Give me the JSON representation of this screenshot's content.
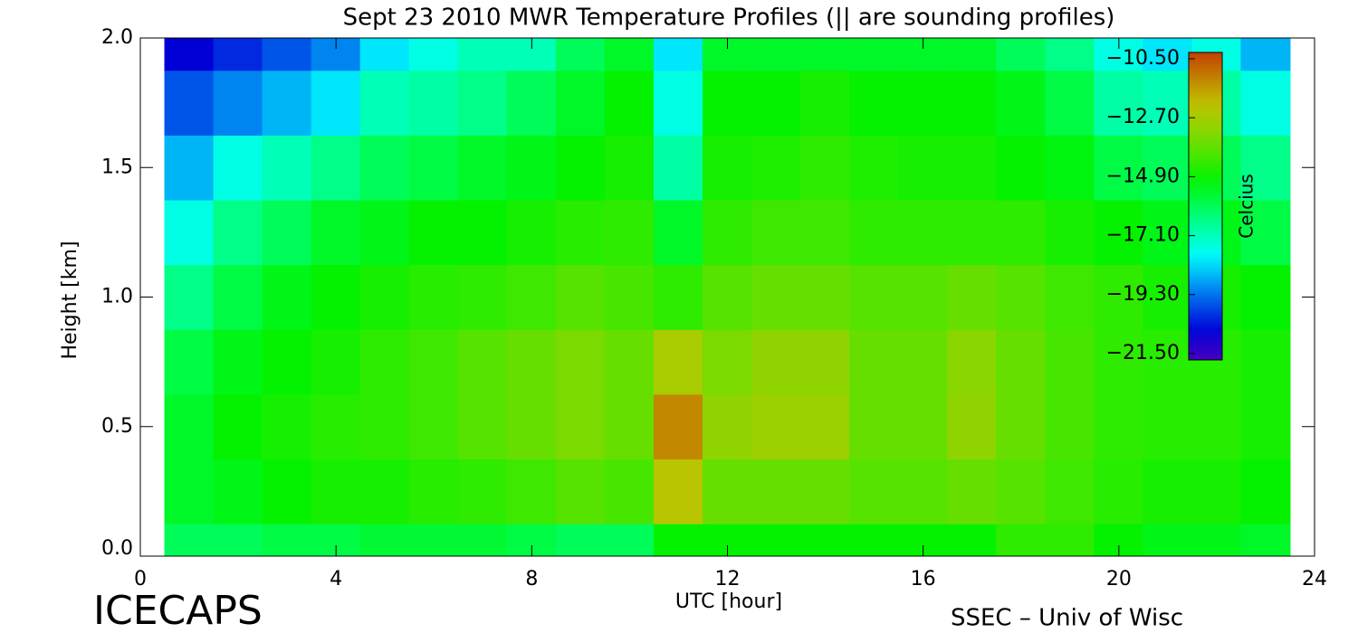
{
  "chart_data": {
    "type": "heatmap",
    "title": "Sept 23 2010 MWR Temperature Profiles (|| are sounding profiles)",
    "xlabel": "UTC [hour]",
    "ylabel": "Height [km]",
    "colorbar_label": "Celcius",
    "footer_left": "ICECAPS",
    "footer_right": "SSEC – Univ of Wisc",
    "xlim": [
      0,
      24
    ],
    "xticks": [
      0,
      4,
      8,
      12,
      16,
      20,
      24
    ],
    "ylim": [
      0,
      2
    ],
    "yticks": [
      {
        "value": 0,
        "label": "0.0"
      },
      {
        "value": 0.5,
        "label": "0.5"
      },
      {
        "value": 1,
        "label": "1.0"
      },
      {
        "value": 1.5,
        "label": "1.5"
      },
      {
        "value": 2,
        "label": "2.0"
      }
    ],
    "colorbar_lim": [
      -21.5,
      -10.5
    ],
    "colorbar_ticks": [
      {
        "value": -10.5,
        "label": "−10.50"
      },
      {
        "value": -12.7,
        "label": "−12.70"
      },
      {
        "value": -14.9,
        "label": "−14.90"
      },
      {
        "value": -17.1,
        "label": "−17.10"
      },
      {
        "value": -19.3,
        "label": "−19.30"
      },
      {
        "value": -21.5,
        "label": "−21.50"
      }
    ],
    "colormap": "rainbow",
    "x": [
      1,
      2,
      3,
      4,
      5,
      6,
      7,
      8,
      9,
      10,
      11,
      12,
      13,
      14,
      15,
      16,
      17,
      18,
      19,
      20,
      21,
      22,
      23
    ],
    "y": [
      0,
      0.25,
      0.5,
      0.75,
      1,
      1.25,
      1.5,
      1.75,
      2
    ],
    "z": [
      [
        -16,
        -16,
        -15.8,
        -15.8,
        -15.6,
        -15.6,
        -15.6,
        -15.8,
        -16,
        -16,
        -15,
        -15,
        -15,
        -15,
        -15,
        -15,
        -15,
        -14.5,
        -14.5,
        -15,
        -15.3,
        -15.3,
        -15.5
      ],
      [
        -15.5,
        -15.3,
        -15,
        -14.8,
        -14.8,
        -14.6,
        -14.5,
        -14.3,
        -14,
        -14.2,
        -12.5,
        -13.8,
        -13.8,
        -13.8,
        -14,
        -14,
        -13.8,
        -14,
        -14.3,
        -14.6,
        -14.8,
        -14.8,
        -15
      ],
      [
        -15.5,
        -15,
        -14.8,
        -14.6,
        -14.5,
        -14.3,
        -14,
        -13.8,
        -13.5,
        -13.8,
        -11.5,
        -13.2,
        -13,
        -13,
        -13.8,
        -13.8,
        -13.2,
        -13.8,
        -14.2,
        -14.5,
        -14.6,
        -14.6,
        -14.8
      ],
      [
        -15.8,
        -15.3,
        -15,
        -14.8,
        -14.5,
        -14.3,
        -14,
        -13.8,
        -13.5,
        -13.8,
        -12.8,
        -13.5,
        -13.2,
        -13.2,
        -13.8,
        -13.8,
        -13.3,
        -13.8,
        -14.2,
        -14.5,
        -14.6,
        -14.6,
        -14.8
      ],
      [
        -16.5,
        -15.8,
        -15.3,
        -15,
        -14.8,
        -14.6,
        -14.5,
        -14.3,
        -14,
        -14.2,
        -14.5,
        -14,
        -13.8,
        -13.8,
        -14,
        -14,
        -13.8,
        -14,
        -14.3,
        -14.5,
        -14.8,
        -14.8,
        -15
      ],
      [
        -17.5,
        -16.5,
        -16,
        -15.5,
        -15.3,
        -15,
        -15,
        -14.8,
        -14.6,
        -14.5,
        -15.5,
        -14.5,
        -14.3,
        -14.3,
        -14.5,
        -14.5,
        -14.5,
        -14.5,
        -14.8,
        -15,
        -15.3,
        -15.3,
        -15.8
      ],
      [
        -18.5,
        -17.5,
        -17,
        -16.5,
        -16,
        -15.8,
        -15.5,
        -15.3,
        -15,
        -14.8,
        -16.8,
        -14.8,
        -14.7,
        -14.5,
        -14.7,
        -14.8,
        -14.8,
        -15,
        -15.2,
        -15.8,
        -16,
        -16,
        -16.5
      ],
      [
        -19.5,
        -19,
        -18.5,
        -18,
        -17,
        -16.8,
        -16.5,
        -16,
        -15.5,
        -15,
        -17.5,
        -15,
        -15,
        -14.8,
        -15,
        -15,
        -15,
        -15.3,
        -15.8,
        -16.8,
        -17,
        -16.8,
        -17.5
      ],
      [
        -20.5,
        -20,
        -19.5,
        -19,
        -18,
        -17.5,
        -17,
        -17,
        -16,
        -15.5,
        -18,
        -15.5,
        -15.5,
        -15.5,
        -15.5,
        -15.5,
        -15.5,
        -16,
        -16.5,
        -17.5,
        -18,
        -17.5,
        -18.5
      ]
    ]
  }
}
